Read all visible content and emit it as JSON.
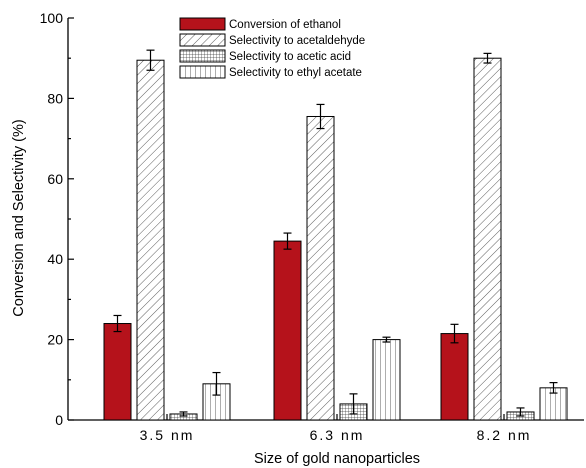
{
  "chart_data": {
    "type": "bar",
    "xlabel": "Size of gold nanoparticles",
    "ylabel": "Conversion and Selectivity (%)",
    "ylim": [
      0,
      100
    ],
    "yticks": [
      0,
      20,
      40,
      60,
      80,
      100
    ],
    "categories": [
      "3.5 nm",
      "6.3 nm",
      "8.2 nm"
    ],
    "legend_position": "top-center",
    "series": [
      {
        "name": "Conversion of ethanol",
        "pattern": "solid",
        "color": "#b5121b",
        "values": [
          24,
          44.5,
          21.5
        ],
        "errors": [
          2,
          2,
          2.3
        ]
      },
      {
        "name": "Selectivity to acetaldehyde",
        "pattern": "diagonal-hatch",
        "color": "#ffffff",
        "values": [
          89.5,
          75.5,
          90
        ],
        "errors": [
          2.5,
          3,
          1.2
        ]
      },
      {
        "name": "Selectivity to acetic acid",
        "pattern": "grid",
        "color": "#ffffff",
        "values": [
          1.5,
          4,
          2
        ],
        "errors": [
          0.5,
          2.5,
          1
        ]
      },
      {
        "name": "Selectivity to ethyl acetate",
        "pattern": "vertical-lines",
        "color": "#ffffff",
        "values": [
          9,
          20,
          8
        ],
        "errors": [
          2.8,
          0.6,
          1.3
        ]
      }
    ]
  }
}
